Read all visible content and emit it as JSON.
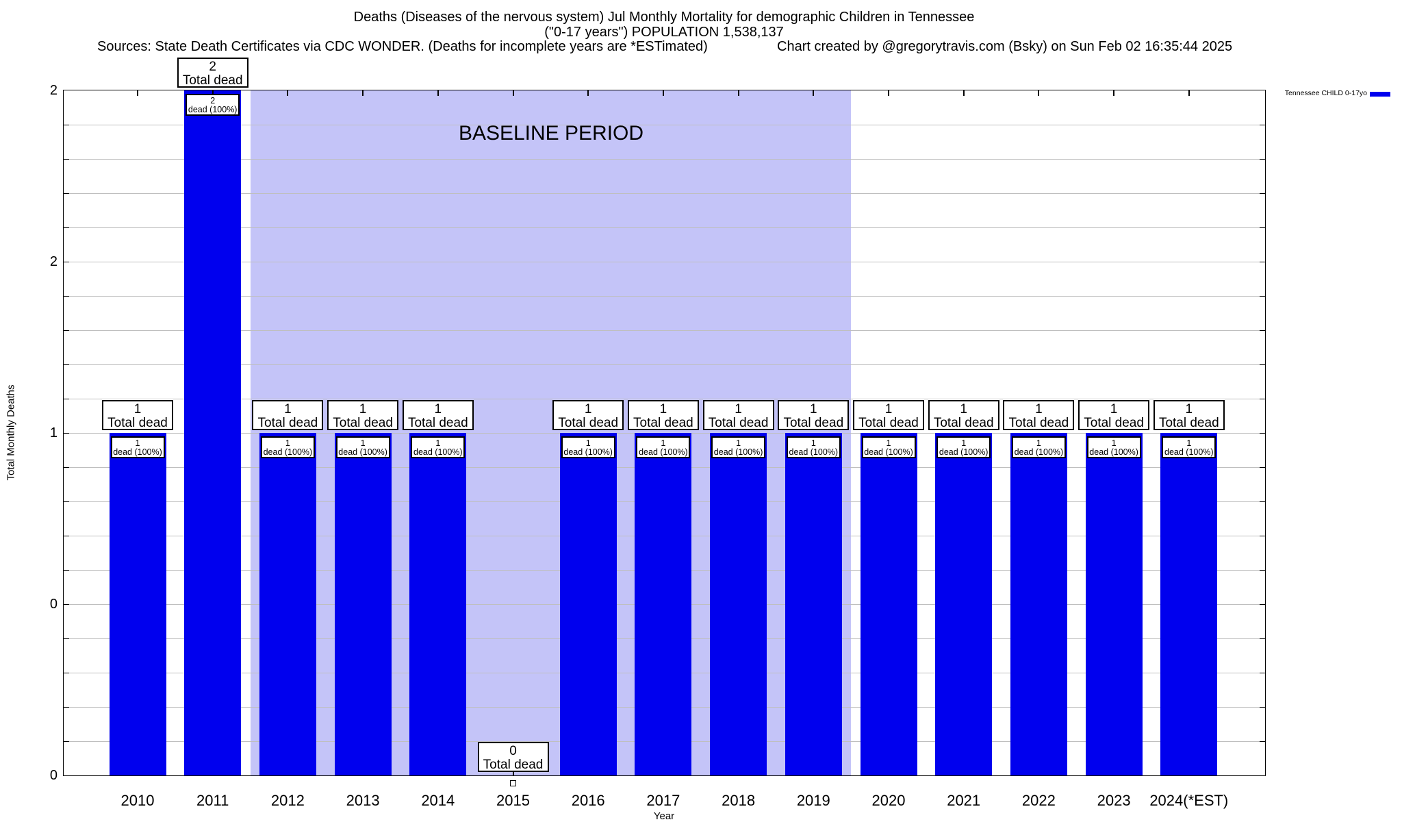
{
  "header": {
    "title_line1": "Deaths (Diseases of the nervous system) Jul Monthly Mortality for demographic Children in Tennessee",
    "title_line2": "(\"0-17 years\") POPULATION 1,538,137",
    "sources_line": "Sources: State Death Certificates via CDC WONDER. (Deaths for incomplete years are *ESTimated)",
    "credit_line": "Chart created by @gregorytravis.com (Bsky) on Sun Feb 02 16:35:44 2025"
  },
  "legend": {
    "label": "Tennessee CHILD 0-17yo",
    "swatch_color": "#0000ee"
  },
  "chart_data": {
    "type": "bar",
    "title": "Deaths (Diseases of the nervous system) Jul Monthly Mortality for demographic Children in Tennessee",
    "subtitle": "(\"0-17 years\") POPULATION 1,538,137",
    "xlabel": "Year",
    "ylabel": "Total Monthly Deaths",
    "ylim": [
      0,
      2
    ],
    "grid": true,
    "minor_grid_step": 0.1,
    "categories": [
      "2010",
      "2011",
      "2012",
      "2013",
      "2014",
      "2015",
      "2016",
      "2017",
      "2018",
      "2019",
      "2020",
      "2021",
      "2022",
      "2023",
      "2024(*EST)"
    ],
    "values": [
      1,
      2,
      1,
      1,
      1,
      0,
      1,
      1,
      1,
      1,
      1,
      1,
      1,
      1,
      1
    ],
    "bar_total_label": "Total dead",
    "bar_dead_label": "dead (100%)",
    "yticks": {
      "values": [
        0,
        0.5,
        1,
        1.5,
        2
      ],
      "labels": [
        "0",
        "0",
        "1",
        "2",
        "2"
      ]
    },
    "legend_entry": "Tennessee CHILD 0-17yo",
    "legend_position": "top-right-outside",
    "baseline_region": {
      "label": "BASELINE PERIOD",
      "start_year": "2012",
      "end_year": "2019"
    },
    "colors": {
      "bar": "#0000ee",
      "baseline_region": "#c4c4f8",
      "gridline": "#bfbfbf",
      "box_background": "#ffffff",
      "box_border": "#000000"
    }
  }
}
